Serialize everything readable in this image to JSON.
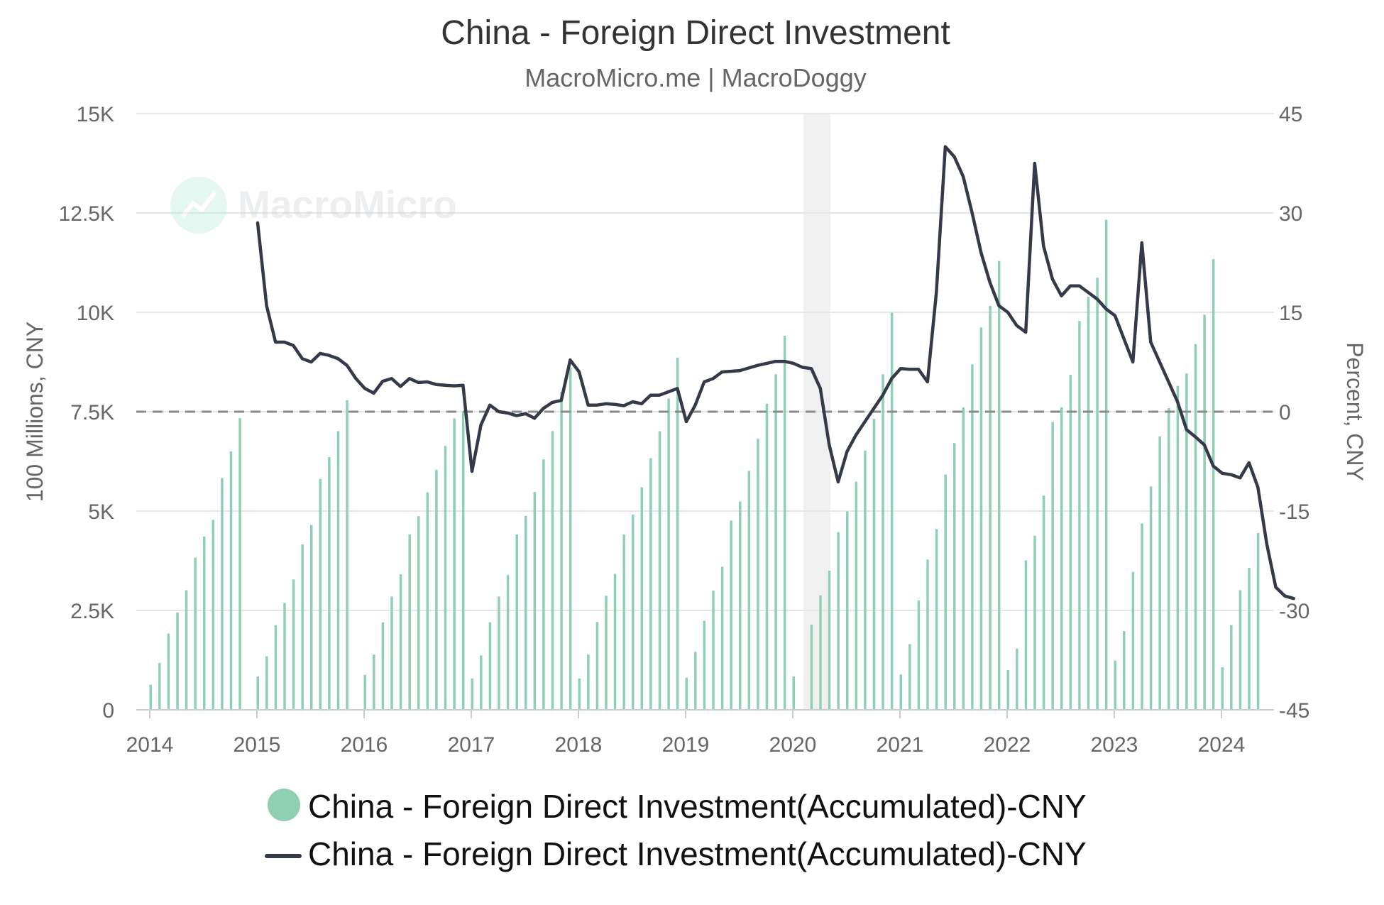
{
  "chart_data": {
    "type": "bar+line",
    "title": "China - Foreign Direct Investment",
    "subtitle": "MacroMicro.me | MacroDoggy",
    "watermark": "MacroMicro",
    "y_left": {
      "label": "100 Millions, CNY",
      "min": 0,
      "max": 15000,
      "ticks": [
        0,
        2500,
        5000,
        7500,
        10000,
        12500,
        15000
      ],
      "tick_labels": [
        "0",
        "2.5K",
        "5K",
        "7.5K",
        "10K",
        "12.5K",
        "15K"
      ]
    },
    "y_right": {
      "label": "Percent, CNY",
      "min": -45,
      "max": 45,
      "ticks": [
        -45,
        -30,
        -15,
        0,
        15,
        30,
        45
      ],
      "tick_labels": [
        "-45",
        "-30",
        "-15",
        "0",
        "15",
        "30",
        "45"
      ]
    },
    "x_axis": {
      "start_year": 2014,
      "end_year": 2024.5,
      "tick_labels": [
        "2014",
        "2015",
        "2016",
        "2017",
        "2018",
        "2019",
        "2020",
        "2021",
        "2022",
        "2023",
        "2024"
      ]
    },
    "zero_reference_line": 0,
    "recession_band": [
      "2020.1",
      "2020.35"
    ],
    "grid": "horizontal",
    "legend_position": "bottom-center",
    "colors": {
      "bars": "#8fd0b4",
      "line": "#353a48",
      "grid": "#e6e6e6",
      "band": "#f0f0f0",
      "reference": "#8a8a8a",
      "title": "#333333",
      "axis_text": "#666666"
    },
    "series": [
      {
        "name": "China - Foreign Direct Investment(Accumulated)-CNY",
        "type": "bar",
        "axis": "left",
        "start": {
          "year": 2014,
          "month": 1
        },
        "values": [
          630,
          1180,
          1920,
          2450,
          3010,
          3830,
          4360,
          4780,
          5830,
          6500,
          7340,
          0,
          840,
          1350,
          2130,
          2690,
          3280,
          4160,
          4650,
          5810,
          6360,
          7010,
          7790,
          0,
          880,
          1390,
          2200,
          2850,
          3410,
          4410,
          4870,
          5470,
          6040,
          6640,
          7330,
          7500,
          790,
          1370,
          2200,
          2850,
          3390,
          4410,
          4880,
          5480,
          6300,
          7010,
          8000,
          8600,
          790,
          1390,
          2210,
          2870,
          3420,
          4410,
          4910,
          5600,
          6330,
          7010,
          7830,
          8860,
          810,
          1460,
          2240,
          3000,
          3600,
          4760,
          5240,
          6010,
          6820,
          7700,
          8440,
          9410,
          840,
          0,
          2140,
          2880,
          3500,
          4470,
          4990,
          5740,
          6520,
          7320,
          8440,
          9990,
          890,
          1650,
          2750,
          3780,
          4550,
          5920,
          6710,
          7610,
          8690,
          9620,
          10160,
          11290,
          1000,
          1540,
          3760,
          4380,
          5390,
          7240,
          7610,
          8430,
          9780,
          10390,
          10870,
          12330,
          1240,
          1980,
          3470,
          4690,
          5620,
          6880,
          7590,
          8150,
          8460,
          9200,
          9940,
          11340,
          1070,
          2130,
          3010,
          3570,
          4450
        ]
      },
      {
        "name": "China - Foreign Direct Investment(Accumulated)-CNY",
        "type": "line",
        "axis": "right",
        "start": {
          "year": 2015,
          "month": 1
        },
        "values": [
          28.5,
          16,
          10.5,
          10.5,
          10,
          8,
          7.5,
          8.8,
          8.5,
          8,
          7,
          5,
          3.5,
          2.8,
          4.6,
          5,
          3.8,
          5,
          4.4,
          4.5,
          4.1,
          4,
          3.9,
          4,
          -9,
          -2,
          1,
          0,
          -0.2,
          -0.6,
          -0.3,
          -1,
          0.5,
          1.4,
          1.7,
          7.8,
          6,
          1,
          1,
          1.2,
          1.1,
          0.9,
          1.5,
          1.2,
          2.5,
          2.5,
          3,
          3.5,
          -1.5,
          1,
          4.5,
          5,
          6,
          6.1,
          6.2,
          6.6,
          7,
          7.3,
          7.6,
          7.6,
          7.3,
          6.7,
          6.5,
          3.5,
          -5,
          -10.6,
          -6,
          -3.5,
          -1.5,
          0.5,
          2.5,
          5,
          6.5,
          6.4,
          6.4,
          4.5,
          18,
          40,
          38.5,
          35.5,
          30,
          24,
          19.5,
          16,
          15,
          13,
          12,
          37.5,
          25,
          20,
          17.5,
          19,
          19,
          18,
          17,
          15.5,
          14.5,
          11,
          7.5,
          25.5,
          10.5,
          7.5,
          4.5,
          1.5,
          -2.7,
          -3.8,
          -5,
          -8.2,
          -9.3,
          -9.5,
          -10,
          -7.7,
          -11.4,
          -20,
          -26.5,
          -27.8,
          -28.2
        ]
      }
    ]
  }
}
